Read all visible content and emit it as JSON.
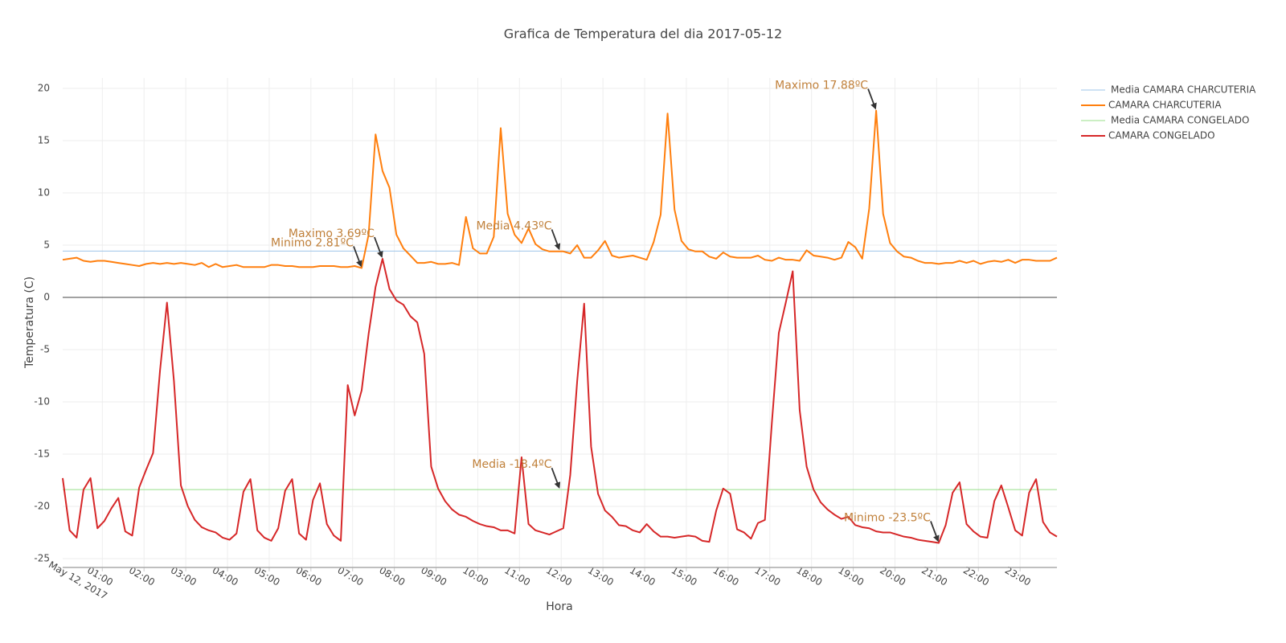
{
  "chart_data": {
    "type": "line",
    "title": "Grafica de Temperatura del dia 2017-05-12",
    "x_label": "Hora",
    "y_label": "Temperatura (C)",
    "date_label": "May 12, 2017",
    "x": [
      "00:03",
      "00:13",
      "00:23",
      "00:33",
      "00:43",
      "00:53",
      "01:03",
      "01:13",
      "01:23",
      "01:33",
      "01:43",
      "01:53",
      "02:03",
      "02:13",
      "02:23",
      "02:33",
      "02:43",
      "02:53",
      "03:03",
      "03:13",
      "03:23",
      "03:33",
      "03:43",
      "03:53",
      "04:03",
      "04:13",
      "04:23",
      "04:33",
      "04:43",
      "04:53",
      "05:03",
      "05:13",
      "05:23",
      "05:33",
      "05:43",
      "05:53",
      "06:03",
      "06:13",
      "06:23",
      "06:33",
      "06:43",
      "06:53",
      "07:03",
      "07:13",
      "07:23",
      "07:33",
      "07:43",
      "07:53",
      "08:03",
      "08:13",
      "08:23",
      "08:33",
      "08:43",
      "08:53",
      "09:03",
      "09:13",
      "09:23",
      "09:33",
      "09:43",
      "09:53",
      "10:03",
      "10:13",
      "10:23",
      "10:33",
      "10:43",
      "10:53",
      "11:03",
      "11:13",
      "11:23",
      "11:33",
      "11:43",
      "11:53",
      "12:03",
      "12:13",
      "12:23",
      "12:33",
      "12:43",
      "12:53",
      "13:03",
      "13:13",
      "13:23",
      "13:33",
      "13:43",
      "13:53",
      "14:03",
      "14:13",
      "14:23",
      "14:33",
      "14:43",
      "14:53",
      "15:03",
      "15:13",
      "15:23",
      "15:33",
      "15:43",
      "15:53",
      "16:03",
      "16:13",
      "16:23",
      "16:33",
      "16:43",
      "16:53",
      "17:03",
      "17:13",
      "17:23",
      "17:33",
      "17:43",
      "17:53",
      "18:03",
      "18:13",
      "18:23",
      "18:33",
      "18:43",
      "18:53",
      "19:03",
      "19:13",
      "19:23",
      "19:33",
      "19:43",
      "19:53",
      "20:03",
      "20:13",
      "20:23",
      "20:33",
      "20:43",
      "20:53",
      "21:03",
      "21:13",
      "21:23",
      "21:33",
      "21:43",
      "21:53",
      "22:03",
      "22:13",
      "22:23",
      "22:33",
      "22:43",
      "22:53",
      "23:03",
      "23:13",
      "23:23",
      "23:33",
      "23:43",
      "23:53"
    ],
    "xlim": [
      "00:03",
      "23:53"
    ],
    "xticks": [
      "01:00",
      "02:00",
      "03:00",
      "04:00",
      "05:00",
      "06:00",
      "07:00",
      "08:00",
      "09:00",
      "10:00",
      "11:00",
      "12:00",
      "13:00",
      "14:00",
      "15:00",
      "16:00",
      "17:00",
      "18:00",
      "19:00",
      "20:00",
      "21:00",
      "22:00",
      "23:00"
    ],
    "ylim": [
      -25.85,
      21
    ],
    "yticks": [
      -25,
      -20,
      -15,
      -10,
      -5,
      0,
      5,
      10,
      15,
      20
    ],
    "grid": true,
    "zeroline": true,
    "legend": "right",
    "series": [
      {
        "name": "Media CAMARA CHARCUTERIA",
        "color": "#9ec5e8",
        "kind": "mean",
        "value": 4.43
      },
      {
        "name": "CAMARA CHARCUTERIA",
        "color": "#ff7f0e",
        "values": [
          3.6,
          3.7,
          3.8,
          3.5,
          3.4,
          3.5,
          3.5,
          3.4,
          3.3,
          3.2,
          3.1,
          3.0,
          3.2,
          3.3,
          3.2,
          3.3,
          3.2,
          3.3,
          3.2,
          3.1,
          3.3,
          2.9,
          3.2,
          2.9,
          3.0,
          3.1,
          2.9,
          2.9,
          2.9,
          2.9,
          3.1,
          3.1,
          3.0,
          3.0,
          2.9,
          2.9,
          2.9,
          3.0,
          3.0,
          3.0,
          2.9,
          2.9,
          3.0,
          2.81,
          6,
          15.6,
          12.1,
          10.5,
          6,
          4.7,
          4.0,
          3.3,
          3.3,
          3.4,
          3.2,
          3.2,
          3.3,
          3.1,
          7.7,
          4.7,
          4.2,
          4.2,
          5.8,
          16.2,
          8.0,
          6.0,
          5.2,
          6.6,
          5.1,
          4.6,
          4.4,
          4.4,
          4.4,
          4.2,
          5.0,
          3.8,
          3.8,
          4.5,
          5.4,
          4.0,
          3.8,
          3.9,
          4.0,
          3.8,
          3.6,
          5.3,
          7.9,
          17.6,
          8.4,
          5.4,
          4.6,
          4.4,
          4.4,
          3.9,
          3.7,
          4.3,
          3.9,
          3.8,
          3.8,
          3.8,
          4.0,
          3.6,
          3.5,
          3.8,
          3.6,
          3.6,
          3.5,
          4.5,
          4.0,
          3.9,
          3.8,
          3.6,
          3.8,
          5.3,
          4.8,
          3.7,
          8.5,
          17.88,
          8.0,
          5.2,
          4.4,
          3.9,
          3.8,
          3.5,
          3.3,
          3.3,
          3.2,
          3.3,
          3.3,
          3.5,
          3.3,
          3.5,
          3.2,
          3.4,
          3.5,
          3.4,
          3.6,
          3.3,
          3.6,
          3.6,
          3.5,
          3.5,
          3.5,
          3.8
        ]
      },
      {
        "name": "Media CAMARA CONGELADO",
        "color": "#98df8a",
        "kind": "mean",
        "value": -18.4
      },
      {
        "name": "CAMARA CONGELADO",
        "color": "#d62728",
        "values": [
          -17.3,
          -22.3,
          -23.0,
          -18.4,
          -17.3,
          -22.1,
          -21.4,
          -20.2,
          -19.2,
          -22.4,
          -22.8,
          -18.2,
          -16.5,
          -14.9,
          -7,
          -0.5,
          -8,
          -18.0,
          -20.0,
          -21.3,
          -22.0,
          -22.3,
          -22.5,
          -23.0,
          -23.2,
          -22.6,
          -18.6,
          -17.4,
          -22.3,
          -23.0,
          -23.3,
          -22.1,
          -18.5,
          -17.4,
          -22.6,
          -23.2,
          -19.4,
          -17.8,
          -21.7,
          -22.8,
          -23.3,
          -8.4,
          -11.3,
          -8.9,
          -3.5,
          1.0,
          3.69,
          0.8,
          -0.3,
          -0.7,
          -1.8,
          -2.4,
          -5.4,
          -16.2,
          -18.3,
          -19.5,
          -20.3,
          -20.8,
          -21.0,
          -21.4,
          -21.7,
          -21.9,
          -22.0,
          -22.3,
          -22.3,
          -22.6,
          -15.3,
          -21.7,
          -22.3,
          -22.5,
          -22.7,
          -22.4,
          -22.1,
          -17.0,
          -8,
          -0.6,
          -14.3,
          -18.8,
          -20.4,
          -21.0,
          -21.8,
          -21.9,
          -22.3,
          -22.5,
          -21.7,
          -22.4,
          -22.9,
          -22.9,
          -23.0,
          -22.9,
          -22.8,
          -22.9,
          -23.3,
          -23.4,
          -20.4,
          -18.3,
          -18.8,
          -22.2,
          -22.5,
          -23.1,
          -21.6,
          -21.3,
          -12,
          -3.4,
          -0.5,
          2.5,
          -10.8,
          -16.2,
          -18.4,
          -19.6,
          -20.3,
          -20.8,
          -21.2,
          -21.0,
          -21.8,
          -22.0,
          -22.1,
          -22.4,
          -22.5,
          -22.5,
          -22.7,
          -22.9,
          -23.0,
          -23.2,
          -23.3,
          -23.4,
          -23.5,
          -21.8,
          -18.7,
          -17.7,
          -21.7,
          -22.4,
          -22.9,
          -23.0,
          -19.5,
          -18.0,
          -20.1,
          -22.3,
          -22.8,
          -18.7,
          -17.4,
          -21.5,
          -22.5,
          -22.9
        ]
      }
    ],
    "annotations": [
      {
        "text": "Minimo 2.81ºC",
        "x": "07:13",
        "y": 2.81
      },
      {
        "text": "Maximo 3.69ºC",
        "x": "07:43",
        "y": 3.69
      },
      {
        "text": "Media 4.43ºC",
        "x": "11:58",
        "y": 4.43
      },
      {
        "text": "Maximo 17.88ºC",
        "x": "19:33",
        "y": 17.88
      },
      {
        "text": "Media -18.4ºC",
        "x": "11:58",
        "y": -18.4
      },
      {
        "text": "Minimo -23.5ºC",
        "x": "21:03",
        "y": -23.5
      }
    ]
  }
}
